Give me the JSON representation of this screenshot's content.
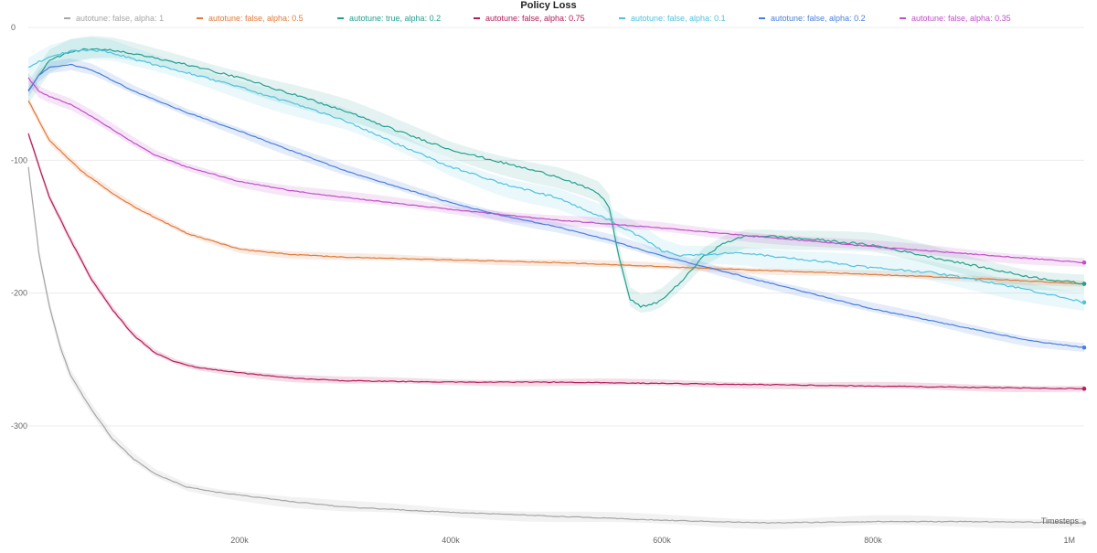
{
  "chart_data": {
    "type": "line",
    "title": "Policy Loss",
    "xlabel": "Timesteps",
    "ylabel": "",
    "xlim": [
      0,
      1000000
    ],
    "ylim": [
      -375,
      0
    ],
    "grid": true,
    "legend_placement": "top",
    "x_ticks": [
      {
        "value": 200000,
        "label": "200k"
      },
      {
        "value": 400000,
        "label": "400k"
      },
      {
        "value": 600000,
        "label": "600k"
      },
      {
        "value": 800000,
        "label": "800k"
      },
      {
        "value": 1000000,
        "label": "1M"
      }
    ],
    "y_ticks": [
      {
        "value": 0,
        "label": "0"
      },
      {
        "value": -100,
        "label": "-100"
      },
      {
        "value": -200,
        "label": "-200"
      },
      {
        "value": -300,
        "label": "-300"
      }
    ],
    "series": [
      {
        "name": "autotune: false, alpha: 1",
        "color": "#a6a6a6",
        "band": 3,
        "x": [
          0,
          10000,
          20000,
          30000,
          40000,
          60000,
          80000,
          100000,
          120000,
          150000,
          180000,
          200000,
          250000,
          300000,
          400000,
          500000,
          600000,
          700000,
          800000,
          900000,
          1000000
        ],
        "y": [
          -105,
          -170,
          -210,
          -240,
          -262,
          -288,
          -310,
          -325,
          -336,
          -346,
          -350,
          -352,
          -357,
          -361,
          -365,
          -368,
          -371,
          -373,
          -372,
          -372,
          -373
        ]
      },
      {
        "name": "autotune: false, alpha: 0.5",
        "color": "#e07a3a",
        "band": 2,
        "x": [
          0,
          20000,
          50000,
          80000,
          100000,
          150000,
          200000,
          250000,
          300000,
          400000,
          500000,
          600000,
          700000,
          800000,
          900000,
          1000000
        ],
        "y": [
          -55,
          -85,
          -108,
          -125,
          -135,
          -155,
          -167,
          -171,
          -173,
          -175,
          -177,
          -180,
          -183,
          -186,
          -189,
          -193
        ]
      },
      {
        "name": "autotune: true, alpha: 0.2",
        "color": "#23a08f",
        "band": 6,
        "x": [
          0,
          20000,
          40000,
          60000,
          80000,
          100000,
          150000,
          200000,
          250000,
          300000,
          350000,
          400000,
          450000,
          500000,
          520000,
          540000,
          550000,
          555000,
          560000,
          565000,
          570000,
          580000,
          590000,
          600000,
          620000,
          640000,
          660000,
          680000,
          700000,
          750000,
          800000,
          850000,
          900000,
          950000,
          1000000
        ],
        "y": [
          -48,
          -25,
          -18,
          -16,
          -17,
          -20,
          -28,
          -38,
          -50,
          -63,
          -78,
          -92,
          -102,
          -112,
          -118,
          -125,
          -135,
          -155,
          -175,
          -190,
          -205,
          -210,
          -209,
          -205,
          -190,
          -172,
          -162,
          -157,
          -157,
          -160,
          -164,
          -172,
          -180,
          -188,
          -193
        ]
      },
      {
        "name": "autotune: false, alpha: 0.75",
        "color": "#b31d5a",
        "band": 2,
        "x": [
          0,
          20000,
          40000,
          60000,
          80000,
          100000,
          120000,
          140000,
          160000,
          180000,
          200000,
          250000,
          300000,
          400000,
          500000,
          600000,
          700000,
          800000,
          900000,
          1000000
        ],
        "y": [
          -80,
          -128,
          -160,
          -190,
          -213,
          -232,
          -245,
          -252,
          -256,
          -258,
          -260,
          -264,
          -266,
          -267,
          -267,
          -268,
          -269,
          -270,
          -271,
          -272
        ]
      },
      {
        "name": "autotune: false, alpha: 0.1",
        "color": "#4fc3de",
        "band": 6,
        "x": [
          0,
          20000,
          40000,
          60000,
          80000,
          100000,
          150000,
          200000,
          250000,
          300000,
          350000,
          400000,
          450000,
          500000,
          550000,
          580000,
          600000,
          620000,
          640000,
          660000,
          680000,
          700000,
          750000,
          800000,
          850000,
          900000,
          950000,
          1000000
        ],
        "y": [
          -30,
          -22,
          -18,
          -17,
          -19,
          -24,
          -34,
          -45,
          -57,
          -70,
          -88,
          -105,
          -118,
          -128,
          -145,
          -158,
          -168,
          -172,
          -171,
          -170,
          -170,
          -172,
          -176,
          -181,
          -184,
          -190,
          -198,
          -207
        ]
      },
      {
        "name": "autotune: false, alpha: 0.2",
        "color": "#4a7fdc",
        "band": 3,
        "x": [
          0,
          10000,
          20000,
          40000,
          60000,
          80000,
          100000,
          150000,
          200000,
          250000,
          300000,
          350000,
          400000,
          450000,
          500000,
          550000,
          600000,
          650000,
          700000,
          750000,
          800000,
          850000,
          900000,
          950000,
          1000000
        ],
        "y": [
          -48,
          -36,
          -30,
          -28,
          -32,
          -40,
          -48,
          -64,
          -78,
          -93,
          -108,
          -120,
          -132,
          -142,
          -150,
          -160,
          -172,
          -182,
          -192,
          -202,
          -212,
          -220,
          -228,
          -236,
          -241
        ]
      },
      {
        "name": "autotune: false, alpha: 0.35",
        "color": "#c04fc8",
        "band": 3,
        "x": [
          0,
          10000,
          20000,
          40000,
          60000,
          80000,
          100000,
          120000,
          150000,
          200000,
          250000,
          300000,
          400000,
          500000,
          600000,
          700000,
          800000,
          900000,
          1000000
        ],
        "y": [
          -38,
          -48,
          -52,
          -58,
          -67,
          -77,
          -87,
          -96,
          -105,
          -116,
          -123,
          -128,
          -137,
          -145,
          -151,
          -158,
          -165,
          -171,
          -177
        ]
      }
    ]
  }
}
